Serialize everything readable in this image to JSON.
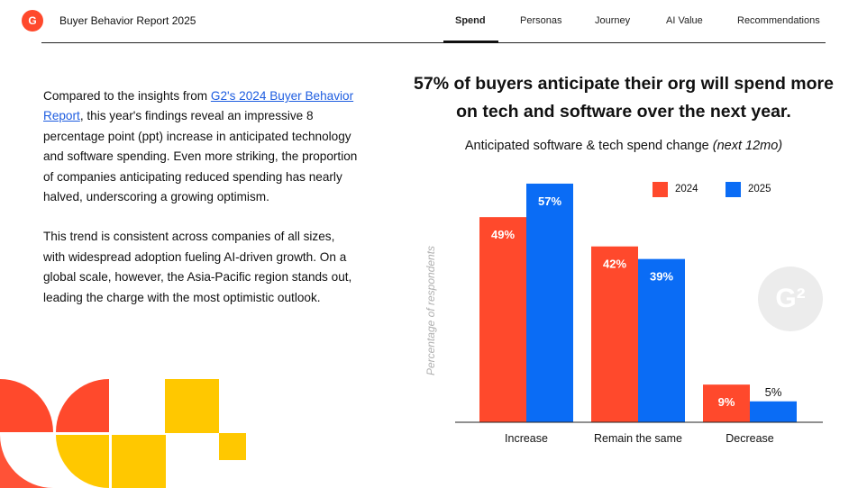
{
  "header": {
    "logo_text": "G",
    "title": "Buyer Behavior Report 2025",
    "tabs": [
      {
        "label": "Spend",
        "active": true
      },
      {
        "label": "Personas",
        "active": false
      },
      {
        "label": "Journey",
        "active": false
      },
      {
        "label": "AI Value",
        "active": false
      },
      {
        "label": "Recommendations",
        "active": false
      }
    ]
  },
  "body": {
    "p1_before": "Compared to the insights from ",
    "p1_link": "G2's 2024 Buyer Behavior Report",
    "p1_after": ", this year's findings reveal an impressive 8 percentage point (ppt) increase in anticipated technology and software spending. Even more striking, the proportion of companies anticipating reduced spending has nearly halved, underscoring a growing optimism.",
    "p2": "This trend is consistent across companies of all sizes, with widespread adoption fueling AI-driven growth. On a global scale, however, the Asia-Pacific region stands out, leading the charge with the most optimistic outlook."
  },
  "headline": "57% of buyers anticipate their org will spend more on tech and software over the next year.",
  "subtitle_main": "Anticipated software & tech spend change ",
  "subtitle_italic": "(next 12mo)",
  "watermark_text": "G²",
  "colors": {
    "accent_2024": "#ff492c",
    "accent_2025": "#0a6cf5",
    "deco_red": "#ff492c",
    "deco_yellow": "#ffc800"
  },
  "chart_data": {
    "type": "bar",
    "categories": [
      "Increase",
      "Remain the same",
      "Decrease"
    ],
    "series": [
      {
        "name": "2024",
        "values": [
          49,
          42,
          9
        ],
        "labels": [
          "49%",
          "42%",
          "9%"
        ],
        "color": "#ff492c"
      },
      {
        "name": "2025",
        "values": [
          57,
          39,
          5
        ],
        "labels": [
          "57%",
          "39%",
          "5%"
        ],
        "color": "#0a6cf5"
      }
    ],
    "ylabel": "Percentage of respondents",
    "legend_position": "top-right",
    "ylim": [
      0,
      60
    ],
    "grid": false
  }
}
